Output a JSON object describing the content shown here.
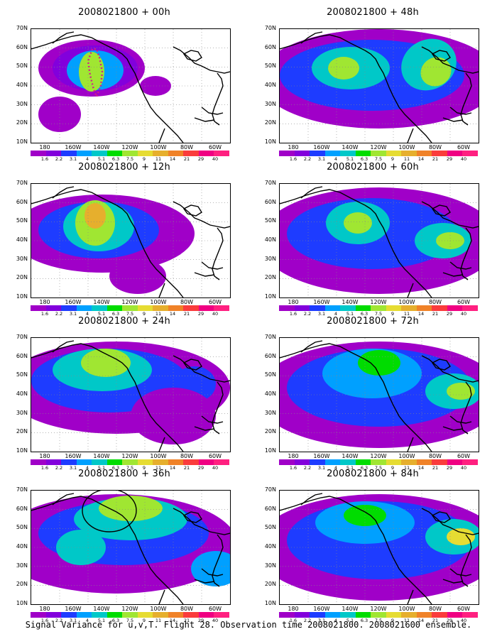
{
  "colorbar": {
    "labels": [
      "1.6",
      "2.2",
      "3.1",
      "4",
      "5.1",
      "6.3",
      "7.5",
      "9",
      "11",
      "14",
      "21",
      "29",
      "40"
    ],
    "colors": [
      "#a000c8",
      "#8200dc",
      "#1e3cff",
      "#00a0ff",
      "#00c8c8",
      "#00dc00",
      "#a0e632",
      "#e6dc32",
      "#e6af2d",
      "#f08228",
      "#fa3c3c",
      "#f00082",
      "#ff2080"
    ]
  },
  "axes": {
    "lat_labels": [
      "70N",
      "60N",
      "50N",
      "40N",
      "30N",
      "20N",
      "10N"
    ],
    "lon_labels": [
      "180",
      "160W",
      "140W",
      "120W",
      "100W",
      "80W",
      "60W"
    ]
  },
  "panels": [
    {
      "id": "00h",
      "title": "2008021800 + 00h"
    },
    {
      "id": "48h",
      "title": "2008021800 + 48h"
    },
    {
      "id": "12h",
      "title": "2008021800 + 12h"
    },
    {
      "id": "60h",
      "title": "2008021800 + 60h"
    },
    {
      "id": "24h",
      "title": "2008021800 + 24h"
    },
    {
      "id": "72h",
      "title": "2008021800 + 72h"
    },
    {
      "id": "36h",
      "title": "2008021800 + 36h"
    },
    {
      "id": "84h",
      "title": "2008021800 + 84h"
    }
  ],
  "caption": "Signal Variance for u,v,T. Flight 28. Observation time 2008021800. 2008021600 ensemble."
}
